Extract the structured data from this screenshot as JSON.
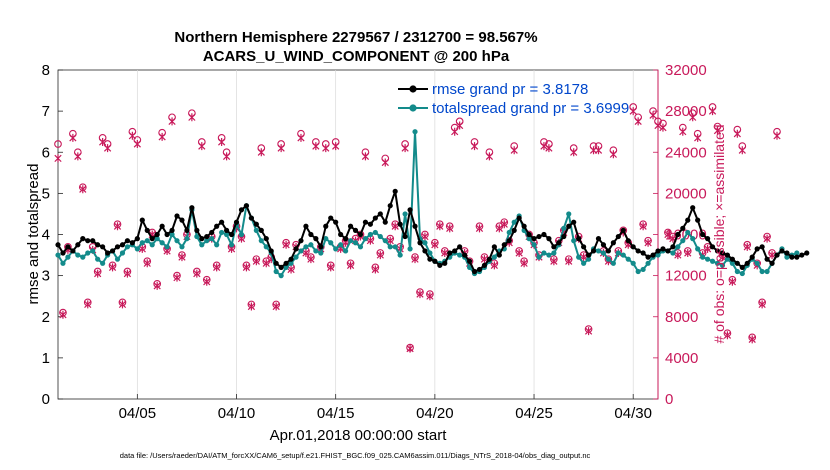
{
  "chart_data": {
    "type": "line",
    "title": "Northern Hemisphere 2279567 / 2312700 = 98.567%",
    "subtitle": "ACARS_U_WIND_COMPONENT @ 200 hPa",
    "xlabel": "Apr.01,2018 00:00:00 start",
    "ylabel": "rmse and totalspread",
    "y2label": "# of obs: o=possible; ×=assimilated",
    "footer": "data file: /Users/raeder/DAI/ATM_forcXX/CAM6_setup/f.e21.FHIST_BGC.f09_025.CAM6assim.011/Diags_NTrS_2018-04/obs_diag_output.nc",
    "x_tick_labels": [
      "04/05",
      "04/10",
      "04/15",
      "04/20",
      "04/25",
      "04/30"
    ],
    "x_tick_days": [
      5,
      10,
      15,
      20,
      25,
      30
    ],
    "xlim": [
      1.0,
      31.25
    ],
    "y_tick_labels": [
      "0",
      "1",
      "2",
      "3",
      "4",
      "5",
      "6",
      "7",
      "8"
    ],
    "ylim": [
      0,
      8
    ],
    "y2_tick_labels": [
      "0",
      "4000",
      "8000",
      "12000",
      "16000",
      "20000",
      "24000",
      "28000",
      "32000"
    ],
    "y2lim": [
      0,
      32000
    ],
    "legend": {
      "location": "top-right",
      "entries": [
        "rmse grand pr = 3.8178",
        "totalspread grand pr = 3.6999"
      ]
    },
    "series": [
      {
        "name": "rmse",
        "color": "#000000",
        "x_start": 1.0,
        "x_step": 0.25,
        "values": [
          3.75,
          3.55,
          3.7,
          3.6,
          3.75,
          3.9,
          3.85,
          3.85,
          3.75,
          3.7,
          3.55,
          3.6,
          3.7,
          3.75,
          3.85,
          3.8,
          3.9,
          4.35,
          4.1,
          3.9,
          4.0,
          4.2,
          4.0,
          4.1,
          4.45,
          4.35,
          4.1,
          4.65,
          4.1,
          3.9,
          3.95,
          4.05,
          4.2,
          4.3,
          4.1,
          4.0,
          4.3,
          4.6,
          4.7,
          4.4,
          4.25,
          4.1,
          3.9,
          3.6,
          3.3,
          3.2,
          3.3,
          3.4,
          3.65,
          3.85,
          4.2,
          4.0,
          3.9,
          3.7,
          4.2,
          4.4,
          4.3,
          4.0,
          3.9,
          4.2,
          4.1,
          4.0,
          4.3,
          4.25,
          4.4,
          4.5,
          4.3,
          4.7,
          5.05,
          4.25,
          3.95,
          4.6,
          4.2,
          3.8,
          3.6,
          3.4,
          3.35,
          3.25,
          3.3,
          3.55,
          3.6,
          3.7,
          3.5,
          3.35,
          3.1,
          3.15,
          3.25,
          3.4,
          3.7,
          3.5,
          3.75,
          3.85,
          4.1,
          4.4,
          4.2,
          4.0,
          3.9,
          3.95,
          4.0,
          3.9,
          3.7,
          3.8,
          3.95,
          4.2,
          4.3,
          3.9,
          3.7,
          3.5,
          3.6,
          3.9,
          3.75,
          3.6,
          3.8,
          3.95,
          4.1,
          3.85,
          3.7,
          3.6,
          3.55,
          3.45,
          3.5,
          3.6,
          3.65,
          3.6,
          3.7,
          4.0,
          4.15,
          4.35,
          4.65,
          4.35,
          4.0,
          3.9,
          3.7,
          3.6,
          3.55,
          3.5,
          3.4,
          3.3,
          3.2,
          3.3,
          3.45,
          3.65,
          3.7,
          3.4,
          3.3,
          3.5,
          3.6,
          3.55,
          3.45,
          3.45,
          3.5,
          3.55
        ],
        "marker": "filled circle"
      },
      {
        "name": "totalspread",
        "color": "#138b8b",
        "x_start": 1.0,
        "x_step": 0.25,
        "values": [
          3.5,
          3.3,
          3.45,
          3.6,
          3.5,
          3.45,
          3.55,
          3.6,
          3.4,
          3.3,
          3.5,
          3.6,
          3.4,
          3.55,
          3.7,
          3.75,
          3.65,
          3.8,
          3.85,
          3.75,
          3.9,
          3.8,
          3.7,
          4.0,
          3.85,
          3.7,
          3.9,
          4.6,
          3.95,
          3.75,
          3.85,
          3.9,
          3.75,
          4.05,
          4.0,
          3.75,
          4.25,
          4.0,
          4.7,
          4.4,
          4.1,
          3.85,
          3.7,
          3.55,
          3.1,
          3.0,
          3.2,
          3.3,
          3.45,
          3.6,
          3.7,
          3.75,
          3.6,
          3.55,
          3.9,
          3.8,
          3.65,
          3.75,
          3.6,
          3.85,
          3.8,
          3.7,
          3.9,
          4.0,
          4.05,
          3.95,
          3.85,
          3.7,
          3.7,
          3.5,
          4.5,
          3.65,
          6.5,
          3.9,
          3.8,
          3.55,
          3.35,
          3.3,
          3.35,
          3.45,
          3.55,
          3.5,
          3.45,
          3.2,
          3.05,
          3.1,
          3.2,
          3.35,
          3.45,
          3.6,
          3.65,
          4.05,
          4.3,
          4.45,
          4.1,
          3.9,
          3.75,
          3.45,
          3.55,
          3.5,
          3.55,
          3.75,
          4.15,
          4.5,
          3.85,
          3.45,
          3.3,
          3.4,
          3.65,
          3.6,
          3.55,
          3.4,
          3.3,
          3.55,
          3.5,
          3.4,
          3.3,
          3.1,
          3.15,
          3.3,
          3.45,
          3.5,
          3.6,
          3.6,
          3.55,
          3.7,
          3.85,
          4.05,
          3.9,
          3.65,
          3.45,
          3.4,
          3.35,
          3.3,
          3.25,
          3.4,
          3.3,
          3.1,
          3.05,
          3.25,
          3.4,
          3.3,
          3.1,
          3.1,
          3.3,
          3.5,
          3.65,
          3.45,
          3.5,
          3.55
        ],
        "marker": "filled circle"
      },
      {
        "name": "possible obs",
        "color": "#c8195a",
        "axis": "right",
        "x_start": 1.0,
        "x_step": 0.25,
        "values": [
          24800,
          8400,
          14800,
          25800,
          24000,
          20600,
          9400,
          14800,
          12400,
          25400,
          24800,
          13000,
          17000,
          9400,
          12400,
          26000,
          25200,
          14800,
          13400,
          16200,
          11200,
          25900,
          14600,
          27400,
          12000,
          14000,
          16000,
          27800,
          12400,
          25000,
          11600,
          15800,
          13000,
          25400,
          24000,
          14800,
          16800,
          15800,
          13000,
          9200,
          13600,
          24400,
          13400,
          13800,
          9200,
          24800,
          15200,
          12800,
          15000,
          25800,
          14400,
          13800,
          25000,
          14800,
          24800,
          13000,
          25000,
          14800,
          15400,
          13200,
          15600,
          16000,
          24000,
          15600,
          12800,
          14200,
          23400,
          15600,
          17000,
          14800,
          24800,
          5000,
          13800,
          10400,
          16000,
          10200,
          15200,
          17000,
          14400,
          16800,
          26400,
          27000,
          14400,
          13400,
          25000,
          16800,
          13800,
          24000,
          13200,
          16800,
          17200,
          15400,
          24600,
          14400,
          13400,
          16000,
          15200,
          14000,
          25000,
          24800,
          13600,
          15400,
          16400,
          13600,
          24400,
          15800,
          14000,
          6800,
          24600,
          24600,
          14400,
          13600,
          24200,
          14400,
          16400,
          15200,
          28400,
          27400,
          17000,
          15400,
          28000,
          27000,
          26800,
          16200,
          15800,
          14200,
          26400,
          14400,
          27800,
          25800,
          14200,
          14800,
          28400,
          26500,
          14000,
          6400,
          11600,
          26200,
          24600,
          15000,
          6000,
          13200,
          9400,
          15800,
          14200,
          26000
        ]
      },
      {
        "name": "assimilated obs",
        "color": "#c8195a",
        "axis": "right",
        "x_start": 1.0,
        "x_step": 0.25,
        "values": [
          23400,
          8200,
          14500,
          25400,
          23600,
          20400,
          9200,
          14500,
          12200,
          25000,
          24400,
          12800,
          16800,
          9200,
          12200,
          25600,
          24800,
          14600,
          13200,
          16000,
          11000,
          25500,
          14400,
          27000,
          11800,
          13800,
          15800,
          27400,
          12200,
          24600,
          11400,
          15600,
          12800,
          25000,
          23600,
          14600,
          16600,
          15600,
          12800,
          9000,
          13400,
          24000,
          13200,
          13600,
          9000,
          24400,
          15000,
          12600,
          14800,
          25400,
          14200,
          13600,
          24600,
          14600,
          24400,
          12800,
          24600,
          14600,
          15200,
          13000,
          15400,
          15800,
          23600,
          15400,
          12600,
          14000,
          23000,
          15400,
          16800,
          14600,
          24400,
          4900,
          13600,
          10200,
          15800,
          10000,
          15000,
          16800,
          14200,
          16600,
          26000,
          26600,
          14200,
          13200,
          24600,
          16600,
          13600,
          23600,
          13000,
          16600,
          17000,
          15200,
          24200,
          14200,
          13200,
          15800,
          15000,
          13800,
          24600,
          24400,
          13400,
          15200,
          16200,
          13400,
          24000,
          15600,
          13800,
          6600,
          24200,
          24200,
          14200,
          13400,
          23800,
          14200,
          16200,
          15000,
          28000,
          27000,
          16800,
          15200,
          27600,
          26600,
          26400,
          16000,
          15600,
          14000,
          26000,
          14200,
          27400,
          25400,
          14000,
          14600,
          28000,
          26100,
          13800,
          6200,
          11400,
          25800,
          24200,
          14800,
          5800,
          13000,
          9200,
          15600,
          14000,
          25600
        ]
      }
    ]
  }
}
